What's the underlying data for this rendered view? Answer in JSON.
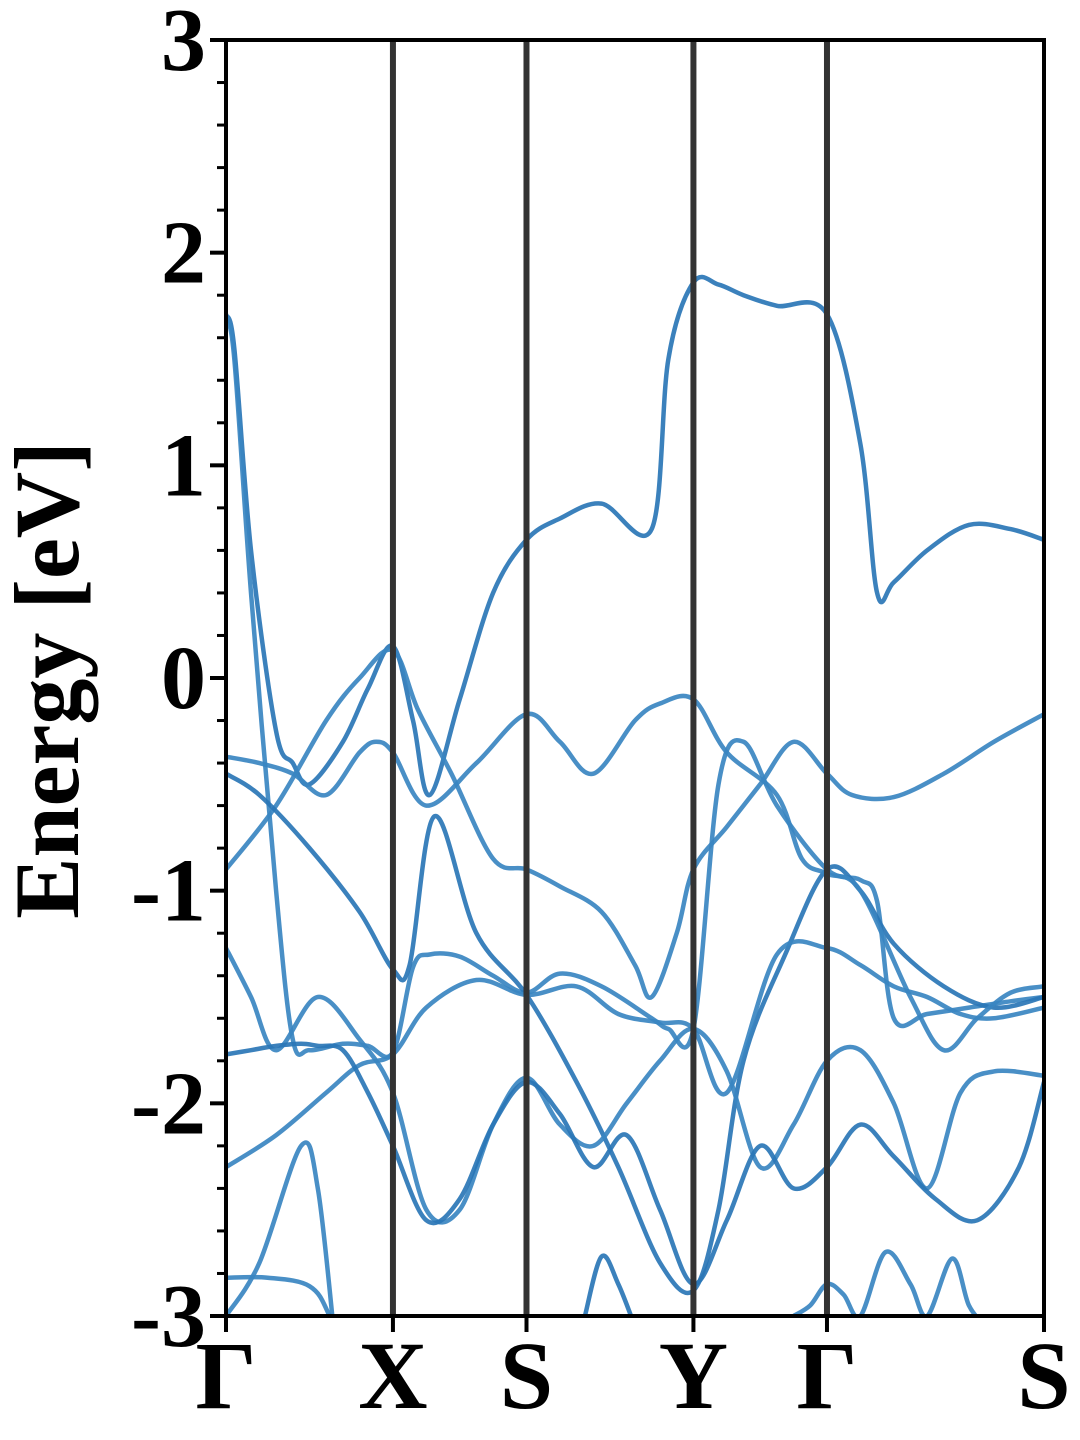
{
  "chart_data": {
    "type": "line",
    "title": "",
    "xlabel": "",
    "ylabel": "Energy [eV]",
    "ylim": [
      -3,
      3
    ],
    "y_ticks": [
      {
        "value": 3,
        "label": "3"
      },
      {
        "value": 2,
        "label": "2"
      },
      {
        "value": 1,
        "label": "1"
      },
      {
        "value": 0,
        "label": "0"
      },
      {
        "value": -1,
        "label": "-1"
      },
      {
        "value": -2,
        "label": "-2"
      },
      {
        "value": -3,
        "label": "-3"
      }
    ],
    "y_minor_step": 0.2,
    "xlim": [
      0,
      4.9
    ],
    "k_points": [
      {
        "label": "Γ",
        "x": 0
      },
      {
        "label": "X",
        "x": 1.0
      },
      {
        "label": "S",
        "x": 1.8
      },
      {
        "label": "Y",
        "x": 2.8
      },
      {
        "label": "Γ",
        "x": 3.6
      },
      {
        "label": "S",
        "x": 4.9
      }
    ],
    "grid": false,
    "legend": "none",
    "colors": {
      "band": "#3a86c1",
      "band_alt": "#2a76b6",
      "high_symmetry_line": "#333333",
      "axis": "#000000"
    },
    "series": [
      {
        "x": [
          0,
          0.05,
          0.15,
          0.3,
          0.4,
          0.5,
          0.7,
          0.85,
          1.0,
          1.12,
          1.22,
          1.4,
          1.6,
          1.8,
          2.0,
          2.25,
          2.55,
          2.65,
          2.8,
          2.95,
          3.1,
          3.3,
          3.6,
          3.8,
          3.9,
          4.0,
          4.2,
          4.45,
          4.7,
          4.9
        ],
        "y": [
          1.71,
          1.55,
          0.6,
          -0.25,
          -0.4,
          -0.5,
          -0.3,
          -0.05,
          0.15,
          -0.2,
          -0.55,
          -0.1,
          0.4,
          0.65,
          0.75,
          0.82,
          0.7,
          1.5,
          1.86,
          1.85,
          1.8,
          1.75,
          1.71,
          1.1,
          0.4,
          0.45,
          0.6,
          0.72,
          0.7,
          0.65
        ]
      },
      {
        "x": [
          0,
          0.05,
          0.15,
          0.3,
          0.4,
          0.5,
          0.7,
          0.85,
          1.0,
          1.12,
          1.22,
          1.4,
          1.6,
          1.8,
          2.0,
          2.25,
          2.55,
          2.65,
          2.8,
          2.95,
          3.1,
          3.3,
          3.6,
          3.8,
          3.9,
          4.0,
          4.2,
          4.45,
          4.7,
          4.9
        ],
        "y": [
          1.69,
          1.5,
          0.4,
          -1.0,
          -1.7,
          -1.75,
          -1.72,
          -1.73,
          -1.76,
          -1.36,
          -1.3,
          -1.31,
          -1.4,
          -1.48,
          -1.39,
          -1.45,
          -1.6,
          -1.65,
          -1.65,
          -0.5,
          -0.3,
          -0.6,
          -0.9,
          -0.95,
          -1.05,
          -1.6,
          -1.58,
          -1.55,
          -1.52,
          -1.5
        ]
      },
      {
        "x": [
          0,
          0.3,
          0.6,
          0.8,
          1.0,
          1.15,
          1.35,
          1.6,
          1.8,
          2.0,
          2.25,
          2.45,
          2.55,
          2.7,
          2.8,
          3.0,
          3.2,
          3.4,
          3.6,
          3.75,
          4.0,
          4.3,
          4.6,
          4.9
        ],
        "y": [
          -0.9,
          -0.6,
          -0.2,
          0.0,
          0.13,
          -0.15,
          -0.45,
          -0.85,
          -0.9,
          -0.98,
          -1.1,
          -1.35,
          -1.5,
          -1.2,
          -0.9,
          -0.7,
          -0.5,
          -0.3,
          -0.45,
          -0.55,
          -0.56,
          -0.45,
          -0.3,
          -0.17
        ]
      },
      {
        "x": [
          0,
          0.2,
          0.5,
          0.8,
          1.0,
          1.1,
          1.25,
          1.5,
          1.8,
          2.1,
          2.35,
          2.6,
          2.8,
          2.95,
          3.1,
          3.35,
          3.6,
          3.8,
          4.0,
          4.3,
          4.6,
          4.9
        ],
        "y": [
          -0.45,
          -0.55,
          -0.8,
          -1.1,
          -1.37,
          -1.35,
          -0.65,
          -1.2,
          -1.49,
          -1.9,
          -2.3,
          -2.75,
          -2.88,
          -2.5,
          -1.8,
          -1.3,
          -0.9,
          -1.0,
          -1.25,
          -1.45,
          -1.55,
          -1.5
        ]
      },
      {
        "x": [
          0,
          0.15,
          0.3,
          0.55,
          0.8,
          1.0,
          1.2,
          1.4,
          1.6,
          1.8,
          2.0,
          2.2,
          2.4,
          2.6,
          2.8,
          3.0,
          3.2,
          3.4,
          3.6,
          3.8,
          4.0,
          4.2,
          4.4,
          4.6,
          4.9
        ],
        "y": [
          -1.27,
          -1.5,
          -1.75,
          -1.5,
          -1.7,
          -1.95,
          -2.5,
          -2.5,
          -2.1,
          -1.88,
          -2.1,
          -2.2,
          -2.0,
          -1.8,
          -1.65,
          -1.85,
          -2.3,
          -2.1,
          -1.8,
          -1.75,
          -2.0,
          -2.4,
          -1.95,
          -1.85,
          -1.87
        ]
      },
      {
        "x": [
          0,
          0.3,
          0.6,
          0.8,
          1.0,
          1.2,
          1.5,
          1.8,
          2.1,
          2.35,
          2.6,
          2.8,
          3.0,
          3.3,
          3.6,
          3.8,
          4.0,
          4.2,
          4.4,
          4.6,
          4.9
        ],
        "y": [
          -2.3,
          -2.15,
          -1.95,
          -1.82,
          -1.77,
          -1.55,
          -1.42,
          -1.49,
          -1.45,
          -1.58,
          -1.62,
          -1.65,
          -1.95,
          -1.3,
          -1.27,
          -1.35,
          -1.45,
          -1.5,
          -1.58,
          -1.6,
          -1.55
        ]
      },
      {
        "x": [
          0,
          0.15,
          0.3,
          0.45,
          0.55,
          0.7,
          0.85,
          1.0,
          1.2,
          1.4,
          1.6,
          1.8,
          2.0,
          2.2,
          2.4,
          2.6,
          2.8,
          3.0,
          3.2,
          3.4,
          3.6,
          3.8,
          4.0,
          4.25,
          4.5,
          4.75,
          4.9
        ],
        "y": [
          -1.77,
          -1.75,
          -1.73,
          -1.72,
          -1.73,
          -1.75,
          -1.95,
          -2.2,
          -2.55,
          -2.45,
          -2.1,
          -1.9,
          -2.05,
          -2.3,
          -2.15,
          -2.5,
          -2.85,
          -2.55,
          -2.2,
          -2.4,
          -2.3,
          -2.1,
          -2.25,
          -2.45,
          -2.55,
          -2.3,
          -1.9
        ]
      },
      {
        "x": [
          0,
          0.25,
          0.5,
          0.62,
          0.75,
          0.95
        ],
        "y": [
          -2.82,
          -2.82,
          -2.86,
          -3.0,
          -3.3,
          -3.6
        ]
      },
      {
        "x": [
          0,
          0.2,
          0.45,
          0.55,
          0.65
        ],
        "y": [
          -3.0,
          -2.75,
          -2.2,
          -2.4,
          -3.1
        ]
      },
      {
        "x": [
          2.15,
          2.25,
          2.35,
          2.45
        ],
        "y": [
          -3.0,
          -2.72,
          -2.85,
          -3.05
        ]
      },
      {
        "x": [
          3.4,
          3.5,
          3.6,
          3.7,
          3.8,
          3.95,
          4.1,
          4.2,
          4.35,
          4.45,
          4.55
        ],
        "y": [
          -3.0,
          -2.95,
          -2.85,
          -2.9,
          -3.0,
          -2.7,
          -2.85,
          -3.0,
          -2.73,
          -2.95,
          -3.05
        ]
      },
      {
        "x": [
          0,
          0.2,
          0.4,
          0.6,
          0.8,
          0.9,
          1.0,
          1.2,
          1.5,
          1.8,
          2.0,
          2.2,
          2.45,
          2.6,
          2.8,
          3.0,
          3.3,
          3.45,
          3.6,
          3.8,
          4.1,
          4.3,
          4.5,
          4.7,
          4.9
        ],
        "y": [
          -0.37,
          -0.4,
          -0.45,
          -0.55,
          -0.35,
          -0.3,
          -0.35,
          -0.6,
          -0.4,
          -0.17,
          -0.3,
          -0.45,
          -0.2,
          -0.12,
          -0.1,
          -0.35,
          -0.55,
          -0.85,
          -0.92,
          -1.0,
          -1.5,
          -1.75,
          -1.6,
          -1.48,
          -1.45
        ]
      }
    ]
  }
}
